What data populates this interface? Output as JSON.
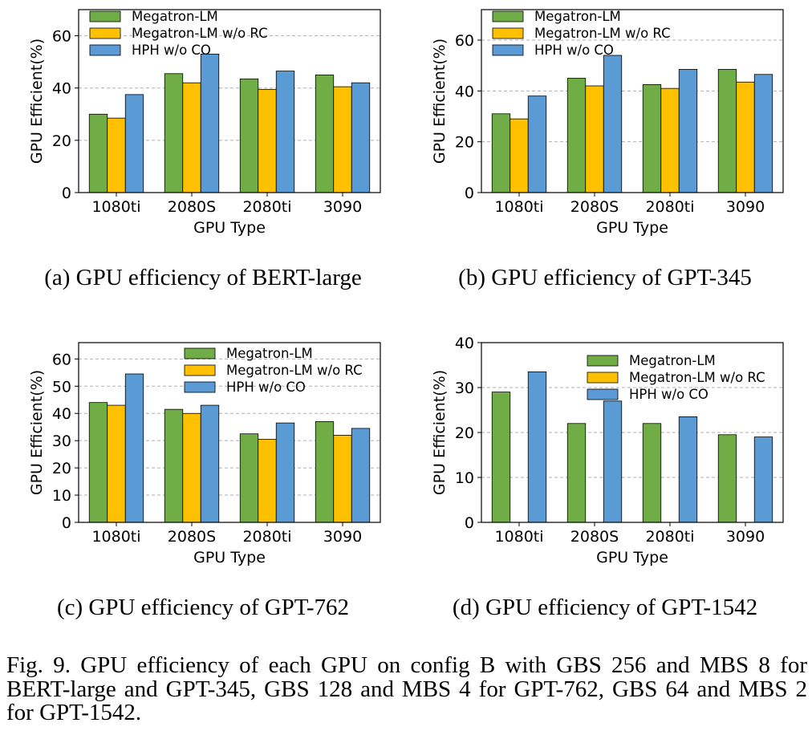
{
  "legend_labels": [
    "Megatron-LM",
    "Megatron-LM w/o RC",
    "HPH w/o CO"
  ],
  "colors": {
    "Megatron-LM": "#70ad47",
    "Megatron-LM w/o RC": "#ffc000",
    "HPH w/o CO": "#5b9bd5"
  },
  "panel_captions": [
    "(a) GPU efficiency of BERT-large",
    "(b) GPU efficiency of GPT-345",
    "(c) GPU efficiency of GPT-762",
    "(d) GPU efficiency of GPT-1542"
  ],
  "figure_caption": "Fig. 9.  GPU efficiency of each GPU on config B with GBS 256 and MBS 8 for BERT-large and GPT-345, GBS 128 and MBS 4 for GPT-762, GBS 64 and MBS 2 for GPT-1542.",
  "chart_data": [
    {
      "type": "bar",
      "xlabel": "GPU Type",
      "ylabel": "GPU Efficient(%)",
      "categories": [
        "1080ti",
        "2080S",
        "2080ti",
        "3090"
      ],
      "yticks": [
        0,
        20,
        40,
        60
      ],
      "ylim": [
        0,
        70
      ],
      "grid": true,
      "legend_position": "top-left",
      "series": [
        {
          "name": "Megatron-LM",
          "values": [
            30,
            45.5,
            43.5,
            45
          ]
        },
        {
          "name": "Megatron-LM w/o RC",
          "values": [
            28.5,
            42,
            39.5,
            40.5
          ]
        },
        {
          "name": "HPH w/o CO",
          "values": [
            37.5,
            53,
            46.5,
            42
          ]
        }
      ]
    },
    {
      "type": "bar",
      "xlabel": "GPU Type",
      "ylabel": "GPU Efficient(%)",
      "categories": [
        "1080ti",
        "2080S",
        "2080ti",
        "3090"
      ],
      "yticks": [
        0,
        20,
        40,
        60
      ],
      "ylim": [
        0,
        72
      ],
      "grid": true,
      "legend_position": "top-left",
      "series": [
        {
          "name": "Megatron-LM",
          "values": [
            31,
            45,
            42.5,
            48.5
          ]
        },
        {
          "name": "Megatron-LM w/o RC",
          "values": [
            29,
            42,
            41,
            43.5
          ]
        },
        {
          "name": "HPH w/o CO",
          "values": [
            38,
            54,
            48.5,
            46.5
          ]
        }
      ]
    },
    {
      "type": "bar",
      "xlabel": "GPU Type",
      "ylabel": "GPU Efficient(%)",
      "categories": [
        "1080ti",
        "2080S",
        "2080ti",
        "3090"
      ],
      "yticks": [
        0,
        10,
        20,
        30,
        40,
        50,
        60
      ],
      "ylim": [
        0,
        66
      ],
      "grid": true,
      "legend_position": "top-right",
      "series": [
        {
          "name": "Megatron-LM",
          "values": [
            44,
            41.5,
            32.5,
            37
          ]
        },
        {
          "name": "Megatron-LM w/o RC",
          "values": [
            43,
            40,
            30.5,
            32
          ]
        },
        {
          "name": "HPH w/o CO",
          "values": [
            54.5,
            43,
            36.5,
            34.5
          ]
        }
      ]
    },
    {
      "type": "bar",
      "xlabel": "GPU Type",
      "ylabel": "GPU Efficient(%)",
      "categories": [
        "1080ti",
        "2080S",
        "2080ti",
        "3090"
      ],
      "yticks": [
        0,
        10,
        20,
        30,
        40
      ],
      "ylim": [
        0,
        40
      ],
      "grid": true,
      "legend_position": "top-right",
      "series": [
        {
          "name": "Megatron-LM",
          "values": [
            29,
            22,
            22,
            19.5
          ]
        },
        {
          "name": "Megatron-LM w/o RC",
          "values": [
            0,
            0,
            0,
            0
          ]
        },
        {
          "name": "HPH w/o CO",
          "values": [
            33.5,
            27,
            23.5,
            19
          ]
        }
      ]
    }
  ]
}
